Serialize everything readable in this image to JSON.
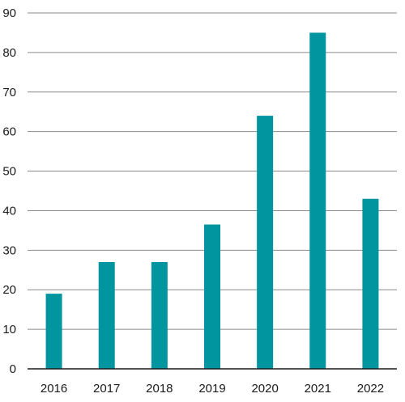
{
  "chart_data": {
    "type": "bar",
    "categories": [
      "2016",
      "2017",
      "2018",
      "2019",
      "2020",
      "2021",
      "2022"
    ],
    "values": [
      19,
      27,
      27,
      36.5,
      64,
      85,
      43
    ],
    "ylim": [
      0,
      90
    ],
    "yticks": [
      "0",
      "10",
      "20",
      "30",
      "40",
      "50",
      "60",
      "70",
      "80",
      "90"
    ],
    "grid": true,
    "bar_color": "#00959f",
    "title": "",
    "xlabel": "",
    "ylabel": ""
  }
}
